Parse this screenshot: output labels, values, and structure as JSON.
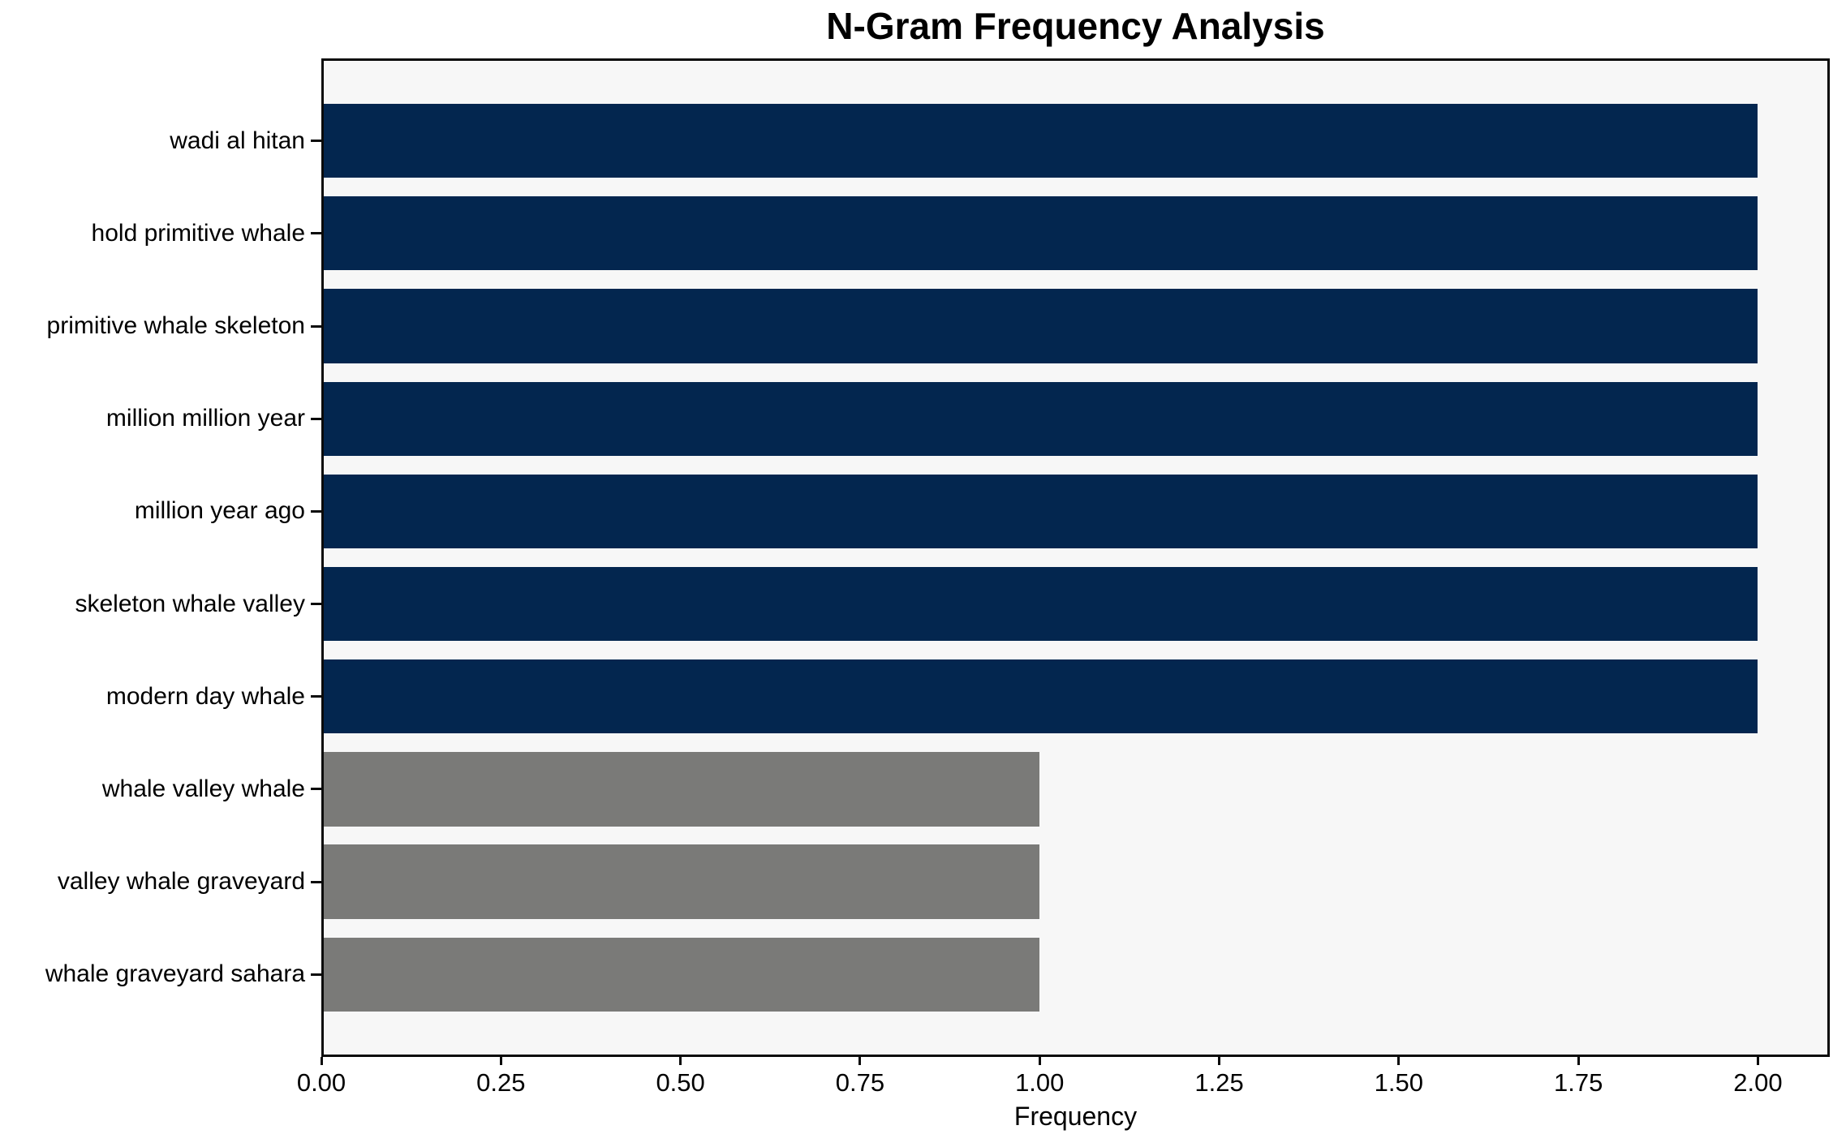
{
  "chart_data": {
    "type": "bar",
    "orientation": "horizontal",
    "title": "N-Gram Frequency Analysis",
    "xlabel": "Frequency",
    "ylabel": "",
    "categories": [
      "wadi al hitan",
      "hold primitive whale",
      "primitive whale skeleton",
      "million million year",
      "million year ago",
      "skeleton whale valley",
      "modern day whale",
      "whale valley whale",
      "valley whale graveyard",
      "whale graveyard sahara"
    ],
    "values": [
      2,
      2,
      2,
      2,
      2,
      2,
      2,
      1,
      1,
      1
    ],
    "bar_colors": [
      "#03264f",
      "#03264f",
      "#03264f",
      "#03264f",
      "#03264f",
      "#03264f",
      "#03264f",
      "#7a7a78",
      "#7a7a78",
      "#7a7a78"
    ],
    "xlim": [
      0,
      2.1
    ],
    "xticks": [
      0,
      0.25,
      0.5,
      0.75,
      1.0,
      1.25,
      1.5,
      1.75,
      2.0
    ],
    "xtick_labels": [
      "0.00",
      "0.25",
      "0.50",
      "0.75",
      "1.00",
      "1.25",
      "1.50",
      "1.75",
      "2.00"
    ],
    "bar_height_fraction": 0.8,
    "grid": false,
    "legend": false,
    "colors": {
      "high_frequency_bar": "#03264f",
      "low_frequency_bar": "#7a7a78",
      "plot_background": "#f7f7f7",
      "figure_background": "#ffffff",
      "spine": "#0a0a0a",
      "text": "#000000"
    }
  }
}
